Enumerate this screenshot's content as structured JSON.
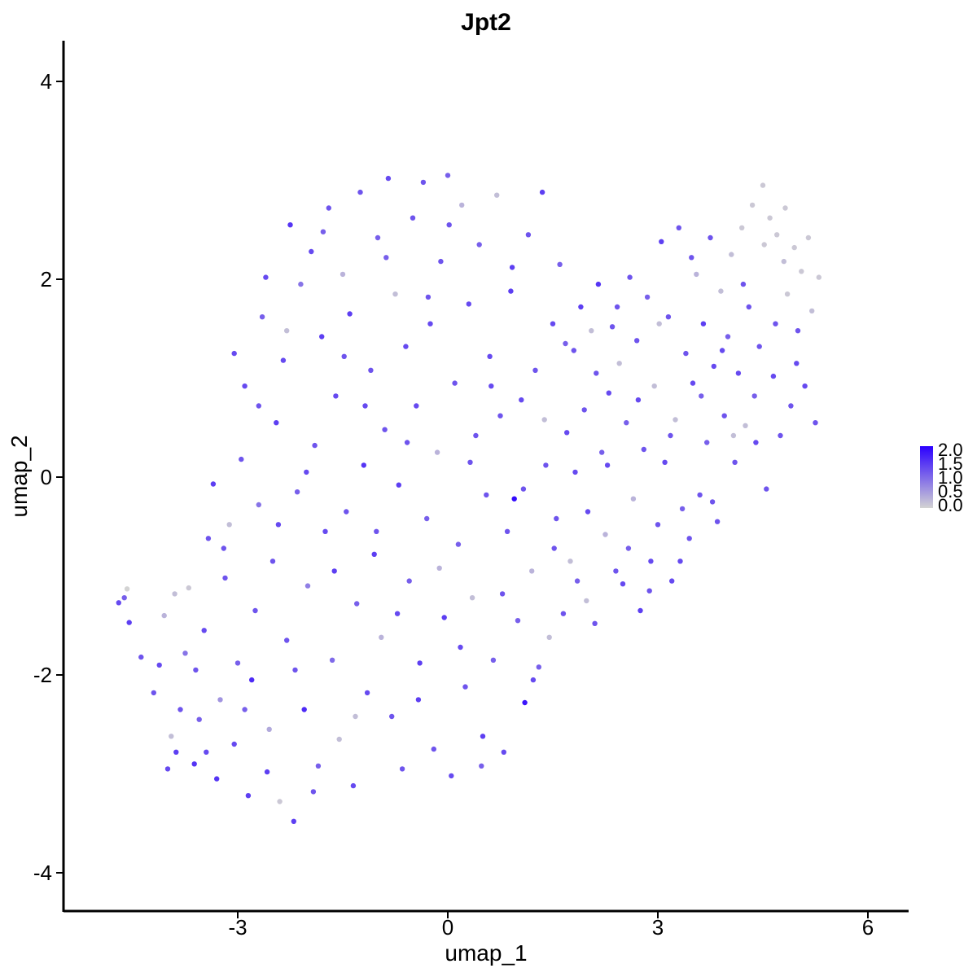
{
  "chart_data": {
    "type": "scatter",
    "title": "Jpt2",
    "xlabel": "umap_1",
    "ylabel": "umap_2",
    "xlim": [
      -5.8,
      6.6
    ],
    "ylim": [
      -4.4,
      4.4
    ],
    "x_ticks": [
      {
        "value": -3,
        "label": "-3"
      },
      {
        "value": 0,
        "label": "0"
      },
      {
        "value": 3,
        "label": "3"
      },
      {
        "value": 6,
        "label": "6"
      }
    ],
    "y_ticks": [
      {
        "value": -4,
        "label": "-4"
      },
      {
        "value": -2,
        "label": "-2"
      },
      {
        "value": 0,
        "label": "0"
      },
      {
        "value": 2,
        "label": "2"
      },
      {
        "value": 4,
        "label": "4"
      }
    ],
    "grid": false,
    "legend": {
      "placement": "right",
      "type": "colorbar",
      "low_color": "#d3d3d3",
      "high_color": "#2b00ff",
      "min": 0.0,
      "max": 2.0,
      "ticks": [
        "0.0",
        "0.5",
        "1.0",
        "1.5",
        "2.0"
      ]
    },
    "points": [
      [
        -4.7,
        -1.27,
        1.3
      ],
      [
        -4.62,
        -1.22,
        1.1
      ],
      [
        -4.58,
        -1.13,
        0.0
      ],
      [
        -4.55,
        -1.47,
        1.4
      ],
      [
        -4.38,
        -1.82,
        1.2
      ],
      [
        -4.2,
        -2.18,
        1.2
      ],
      [
        -4.12,
        -1.9,
        1.3
      ],
      [
        -4.05,
        -1.4,
        0.3
      ],
      [
        -3.95,
        -2.62,
        0.2
      ],
      [
        -3.88,
        -2.78,
        1.4
      ],
      [
        -3.82,
        -2.35,
        1.2
      ],
      [
        -3.75,
        -1.78,
        0.9
      ],
      [
        -3.7,
        -1.12,
        0.1
      ],
      [
        -3.62,
        -2.9,
        1.5
      ],
      [
        -3.55,
        -2.45,
        1.1
      ],
      [
        -3.48,
        -1.55,
        1.3
      ],
      [
        -3.42,
        -0.62,
        1.2
      ],
      [
        -3.35,
        -0.07,
        1.4
      ],
      [
        -3.3,
        -3.05,
        1.5
      ],
      [
        -3.25,
        -2.25,
        0.6
      ],
      [
        -3.18,
        -1.02,
        1.2
      ],
      [
        -3.12,
        -0.48,
        0.2
      ],
      [
        -3.05,
        -2.7,
        1.3
      ],
      [
        -3.0,
        -1.88,
        1.1
      ],
      [
        -2.95,
        0.18,
        1.2
      ],
      [
        -2.9,
        0.92,
        1.3
      ],
      [
        -2.85,
        -3.22,
        1.4
      ],
      [
        -2.8,
        -2.05,
        1.6
      ],
      [
        -2.75,
        -1.35,
        1.2
      ],
      [
        -2.7,
        -0.28,
        0.9
      ],
      [
        -2.65,
        1.62,
        1.1
      ],
      [
        -2.6,
        2.02,
        1.3
      ],
      [
        -2.55,
        -2.55,
        0.4
      ],
      [
        -2.5,
        -0.85,
        1.2
      ],
      [
        -2.45,
        0.55,
        1.4
      ],
      [
        -2.4,
        -3.28,
        0.1
      ],
      [
        -2.35,
        1.18,
        1.3
      ],
      [
        -2.3,
        -1.65,
        1.2
      ],
      [
        -2.25,
        2.55,
        1.5
      ],
      [
        -2.2,
        -3.48,
        1.4
      ],
      [
        -2.15,
        -0.15,
        1.1
      ],
      [
        -2.1,
        1.95,
        0.9
      ],
      [
        -2.05,
        -2.35,
        1.6
      ],
      [
        -2.0,
        -1.1,
        0.8
      ],
      [
        -1.95,
        2.28,
        1.3
      ],
      [
        -1.9,
        0.32,
        1.2
      ],
      [
        -1.85,
        -2.92,
        1.1
      ],
      [
        -1.8,
        1.42,
        1.4
      ],
      [
        -1.75,
        -0.55,
        1.3
      ],
      [
        -1.7,
        2.72,
        1.2
      ],
      [
        -1.65,
        -1.85,
        1.0
      ],
      [
        -1.6,
        0.82,
        1.3
      ],
      [
        -1.55,
        -2.65,
        0.2
      ],
      [
        -1.5,
        2.05,
        0.3
      ],
      [
        -1.45,
        -0.35,
        1.2
      ],
      [
        -1.4,
        1.65,
        1.4
      ],
      [
        -1.35,
        -3.12,
        1.3
      ],
      [
        -1.3,
        -1.28,
        1.1
      ],
      [
        -1.25,
        2.88,
        1.2
      ],
      [
        -1.2,
        0.12,
        1.5
      ],
      [
        -1.15,
        -2.18,
        1.3
      ],
      [
        -1.1,
        1.08,
        1.2
      ],
      [
        -1.05,
        -0.78,
        1.4
      ],
      [
        -1.0,
        2.42,
        1.1
      ],
      [
        -0.95,
        -1.62,
        0.3
      ],
      [
        -0.9,
        0.48,
        1.2
      ],
      [
        -0.85,
        3.02,
        1.3
      ],
      [
        -0.8,
        -2.42,
        1.2
      ],
      [
        -0.75,
        1.85,
        0.2
      ],
      [
        -0.7,
        -0.08,
        1.4
      ],
      [
        -0.65,
        -2.95,
        1.2
      ],
      [
        -0.6,
        1.32,
        1.3
      ],
      [
        -0.55,
        -1.05,
        1.1
      ],
      [
        -0.5,
        2.62,
        1.2
      ],
      [
        -0.45,
        0.72,
        1.3
      ],
      [
        -0.4,
        -1.88,
        1.4
      ],
      [
        -0.35,
        2.98,
        1.2
      ],
      [
        -0.3,
        -0.42,
        1.1
      ],
      [
        -0.25,
        1.55,
        1.3
      ],
      [
        -0.2,
        -2.75,
        1.2
      ],
      [
        -0.15,
        0.25,
        0.3
      ],
      [
        -0.1,
        2.18,
        1.2
      ],
      [
        -0.05,
        -1.42,
        1.4
      ],
      [
        0.0,
        3.05,
        1.1
      ],
      [
        0.05,
        -3.02,
        1.3
      ],
      [
        0.1,
        0.95,
        1.2
      ],
      [
        0.15,
        -0.68,
        1.1
      ],
      [
        0.2,
        2.75,
        0.3
      ],
      [
        0.25,
        -2.12,
        1.2
      ],
      [
        0.3,
        1.75,
        1.3
      ],
      [
        0.35,
        -1.22,
        0.2
      ],
      [
        0.4,
        0.42,
        1.2
      ],
      [
        0.45,
        2.35,
        1.1
      ],
      [
        0.5,
        -2.62,
        1.4
      ],
      [
        0.55,
        -0.18,
        1.2
      ],
      [
        0.6,
        1.22,
        1.3
      ],
      [
        0.65,
        -1.85,
        1.1
      ],
      [
        0.7,
        2.85,
        0.2
      ],
      [
        0.75,
        0.62,
        1.2
      ],
      [
        0.8,
        -2.78,
        1.3
      ],
      [
        0.85,
        -0.55,
        1.2
      ],
      [
        0.9,
        1.88,
        1.4
      ],
      [
        0.95,
        -0.22,
        1.9
      ],
      [
        1.0,
        -1.45,
        1.1
      ],
      [
        1.05,
        0.78,
        1.3
      ],
      [
        1.1,
        -2.28,
        1.8
      ],
      [
        1.15,
        2.45,
        1.2
      ],
      [
        1.2,
        -0.95,
        0.3
      ],
      [
        1.25,
        1.08,
        1.2
      ],
      [
        1.3,
        -1.92,
        1.1
      ],
      [
        1.35,
        2.88,
        1.4
      ],
      [
        1.4,
        0.12,
        1.2
      ],
      [
        1.45,
        -1.62,
        0.2
      ],
      [
        1.5,
        1.55,
        1.3
      ],
      [
        1.55,
        -0.42,
        1.2
      ],
      [
        1.6,
        2.15,
        1.1
      ],
      [
        1.65,
        -1.38,
        1.2
      ],
      [
        1.7,
        0.45,
        1.3
      ],
      [
        1.75,
        -0.85,
        0.2
      ],
      [
        1.8,
        1.28,
        1.2
      ],
      [
        1.85,
        -1.05,
        1.1
      ],
      [
        1.9,
        1.72,
        1.4
      ],
      [
        1.95,
        0.68,
        1.2
      ],
      [
        2.0,
        -0.35,
        1.3
      ],
      [
        2.05,
        1.48,
        0.2
      ],
      [
        2.1,
        -1.48,
        1.2
      ],
      [
        2.15,
        1.95,
        1.5
      ],
      [
        2.2,
        0.25,
        1.1
      ],
      [
        2.25,
        -0.58,
        0.3
      ],
      [
        2.3,
        0.85,
        1.3
      ],
      [
        2.35,
        1.52,
        1.2
      ],
      [
        2.4,
        -0.95,
        1.2
      ],
      [
        2.45,
        1.15,
        0.2
      ],
      [
        2.5,
        -1.08,
        1.3
      ],
      [
        2.55,
        0.55,
        1.1
      ],
      [
        2.6,
        2.02,
        1.2
      ],
      [
        2.65,
        -0.22,
        0.3
      ],
      [
        2.7,
        1.38,
        1.2
      ],
      [
        2.75,
        -1.35,
        1.4
      ],
      [
        2.8,
        0.28,
        1.2
      ],
      [
        2.85,
        1.82,
        1.1
      ],
      [
        2.9,
        -0.85,
        1.3
      ],
      [
        2.95,
        0.92,
        0.2
      ],
      [
        3.0,
        -0.48,
        1.2
      ],
      [
        3.05,
        2.38,
        1.4
      ],
      [
        3.1,
        0.15,
        1.3
      ],
      [
        3.15,
        1.62,
        1.2
      ],
      [
        3.2,
        -1.05,
        1.3
      ],
      [
        3.25,
        0.58,
        0.2
      ],
      [
        3.3,
        2.52,
        1.2
      ],
      [
        3.35,
        -0.32,
        1.1
      ],
      [
        3.4,
        1.25,
        1.2
      ],
      [
        3.45,
        -0.62,
        1.2
      ],
      [
        3.5,
        0.95,
        1.3
      ],
      [
        3.55,
        2.05,
        0.3
      ],
      [
        3.6,
        -0.18,
        1.2
      ],
      [
        3.65,
        1.55,
        1.4
      ],
      [
        3.7,
        0.35,
        1.1
      ],
      [
        3.75,
        2.42,
        1.2
      ],
      [
        3.8,
        1.12,
        1.3
      ],
      [
        3.85,
        -0.45,
        1.2
      ],
      [
        3.9,
        1.88,
        0.2
      ],
      [
        3.95,
        0.62,
        1.2
      ],
      [
        4.0,
        1.42,
        1.1
      ],
      [
        4.05,
        2.25,
        0.2
      ],
      [
        4.1,
        0.15,
        1.2
      ],
      [
        4.15,
        1.05,
        1.3
      ],
      [
        4.2,
        2.52,
        0.1
      ],
      [
        4.25,
        0.52,
        0.2
      ],
      [
        4.3,
        1.72,
        1.2
      ],
      [
        4.35,
        2.75,
        0.1
      ],
      [
        4.4,
        0.35,
        1.3
      ],
      [
        4.45,
        1.32,
        1.2
      ],
      [
        4.5,
        2.95,
        0.1
      ],
      [
        4.55,
        -0.12,
        1.2
      ],
      [
        4.6,
        2.62,
        0.1
      ],
      [
        4.65,
        1.02,
        1.3
      ],
      [
        4.7,
        2.45,
        0.1
      ],
      [
        4.75,
        0.42,
        1.2
      ],
      [
        4.8,
        2.18,
        0.2
      ],
      [
        4.85,
        1.85,
        0.1
      ],
      [
        4.9,
        0.72,
        1.2
      ],
      [
        4.95,
        2.32,
        0.1
      ],
      [
        5.0,
        1.48,
        1.2
      ],
      [
        5.05,
        2.08,
        0.1
      ],
      [
        5.1,
        0.92,
        1.3
      ],
      [
        5.15,
        2.42,
        0.1
      ],
      [
        5.2,
        1.68,
        0.2
      ],
      [
        5.25,
        0.55,
        1.2
      ],
      [
        5.3,
        2.02,
        0.1
      ],
      [
        -4.0,
        -2.95,
        1.3
      ],
      [
        -3.9,
        -1.18,
        0.2
      ],
      [
        -3.6,
        -1.95,
        1.2
      ],
      [
        -3.45,
        -2.78,
        1.3
      ],
      [
        -3.2,
        -0.72,
        1.2
      ],
      [
        -3.05,
        1.25,
        1.3
      ],
      [
        -2.9,
        -2.35,
        1.1
      ],
      [
        -2.7,
        0.72,
        1.2
      ],
      [
        -2.58,
        -2.98,
        1.4
      ],
      [
        -2.42,
        -0.48,
        1.3
      ],
      [
        -2.3,
        1.48,
        0.2
      ],
      [
        -2.18,
        -1.95,
        1.2
      ],
      [
        -2.02,
        0.05,
        1.3
      ],
      [
        -1.92,
        -3.18,
        1.2
      ],
      [
        -1.78,
        2.48,
        1.1
      ],
      [
        -1.62,
        -0.95,
        1.4
      ],
      [
        -1.48,
        1.22,
        1.2
      ],
      [
        -1.32,
        -2.42,
        0.2
      ],
      [
        -1.18,
        0.72,
        1.3
      ],
      [
        -1.02,
        -0.55,
        1.2
      ],
      [
        -0.88,
        2.22,
        1.1
      ],
      [
        -0.72,
        -1.38,
        1.3
      ],
      [
        -0.58,
        0.35,
        1.2
      ],
      [
        -0.42,
        -2.25,
        1.4
      ],
      [
        -0.28,
        1.82,
        1.2
      ],
      [
        -0.12,
        -0.92,
        0.3
      ],
      [
        0.02,
        2.55,
        1.2
      ],
      [
        0.18,
        -1.72,
        1.3
      ],
      [
        0.32,
        0.15,
        1.2
      ],
      [
        0.48,
        -2.92,
        1.1
      ],
      [
        0.62,
        0.92,
        1.3
      ],
      [
        0.78,
        -1.18,
        1.2
      ],
      [
        0.92,
        2.12,
        1.4
      ],
      [
        1.08,
        -0.12,
        1.2
      ],
      [
        1.22,
        -2.05,
        1.3
      ],
      [
        1.38,
        0.58,
        0.2
      ],
      [
        1.52,
        -0.72,
        1.2
      ],
      [
        1.68,
        1.35,
        1.1
      ],
      [
        1.82,
        0.05,
        1.3
      ],
      [
        1.98,
        -1.25,
        0.2
      ],
      [
        2.12,
        1.05,
        1.2
      ],
      [
        2.28,
        0.12,
        1.3
      ],
      [
        2.42,
        1.72,
        1.2
      ],
      [
        2.58,
        -0.72,
        1.1
      ],
      [
        2.72,
        0.78,
        1.3
      ],
      [
        2.88,
        -1.15,
        1.2
      ],
      [
        3.02,
        1.55,
        0.2
      ],
      [
        3.18,
        0.42,
        1.2
      ],
      [
        3.32,
        -0.85,
        1.3
      ],
      [
        3.48,
        2.22,
        1.2
      ],
      [
        3.62,
        0.82,
        1.1
      ],
      [
        3.78,
        -0.25,
        1.2
      ],
      [
        3.92,
        1.28,
        1.3
      ],
      [
        4.08,
        0.42,
        0.2
      ],
      [
        4.22,
        1.95,
        1.2
      ],
      [
        4.38,
        0.82,
        1.1
      ],
      [
        4.52,
        2.35,
        0.1
      ],
      [
        4.68,
        1.55,
        1.2
      ],
      [
        4.82,
        2.72,
        0.1
      ],
      [
        4.98,
        1.15,
        1.3
      ]
    ]
  }
}
